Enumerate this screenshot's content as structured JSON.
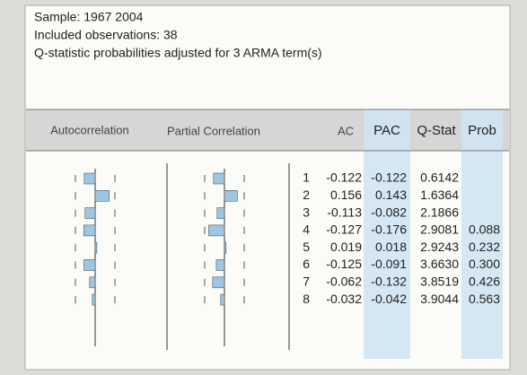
{
  "header": {
    "lines": [
      "Sample: 1967 2004",
      "Included observations: 38",
      "Q-statistic probabilities adjusted for 3 ARMA term(s)"
    ]
  },
  "table": {
    "columns": [
      "Autocorrelation",
      "Partial Correlation",
      "AC",
      "PAC",
      "Q-Stat",
      "Prob"
    ],
    "rows": [
      {
        "lag": 1,
        "ac": -0.122,
        "pac": -0.122,
        "q": 0.6142,
        "prob": null
      },
      {
        "lag": 2,
        "ac": 0.156,
        "pac": 0.143,
        "q": 1.6364,
        "prob": null
      },
      {
        "lag": 3,
        "ac": -0.113,
        "pac": -0.082,
        "q": 2.1866,
        "prob": null
      },
      {
        "lag": 4,
        "ac": -0.127,
        "pac": -0.176,
        "q": 2.9081,
        "prob": 0.088
      },
      {
        "lag": 5,
        "ac": 0.019,
        "pac": 0.018,
        "q": 2.9243,
        "prob": 0.232
      },
      {
        "lag": 6,
        "ac": -0.125,
        "pac": -0.091,
        "q": {
          "value": 3.663,
          "label": "3.6630"
        },
        "prob": {
          "value": 0.3,
          "label": "0.300"
        }
      },
      {
        "lag": 7,
        "ac": -0.062,
        "pac": -0.132,
        "q": 3.8519,
        "prob": 0.426
      },
      {
        "lag": 8,
        "ac": -0.032,
        "pac": -0.042,
        "q": 3.9044,
        "prob": 0.563
      }
    ]
  }
}
